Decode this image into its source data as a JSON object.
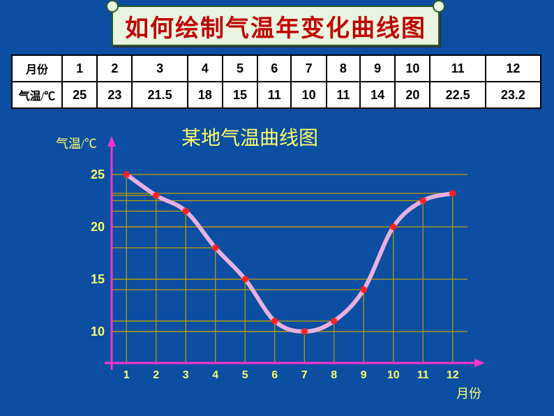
{
  "title": "如何绘制气温年变化曲线图",
  "table": {
    "row_headers": [
      "月份",
      "气温/℃"
    ],
    "months": [
      "1",
      "2",
      "3",
      "4",
      "5",
      "6",
      "7",
      "8",
      "9",
      "10",
      "11",
      "12"
    ],
    "temps": [
      "25",
      "23",
      "21.5",
      "18",
      "15",
      "11",
      "10",
      "11",
      "14",
      "20",
      "22.5",
      "23.2"
    ]
  },
  "chart": {
    "type": "line",
    "title": "某地气温曲线图",
    "ylabel": "气温/℃",
    "xlabel": "月份",
    "x_values": [
      1,
      2,
      3,
      4,
      5,
      6,
      7,
      8,
      9,
      10,
      11,
      12
    ],
    "y_values": [
      25,
      23,
      21.5,
      18,
      15,
      11,
      10,
      11,
      14,
      20,
      22.5,
      23.2
    ],
    "yticks": [
      10,
      15,
      20,
      25
    ],
    "ylim": [
      7,
      27
    ],
    "xlim": [
      0.5,
      12.5
    ],
    "axis_color": "#ff33cc",
    "axis_width": 3,
    "grid_color": "#c0a000",
    "grid_width": 1.2,
    "line_color": "#e8b0e0",
    "line_width": 6,
    "marker_color": "#ff2020",
    "marker_size": 10,
    "background_color": "#0b4ea2",
    "label_color": "#ffff66",
    "tick_fontsize": 18
  }
}
